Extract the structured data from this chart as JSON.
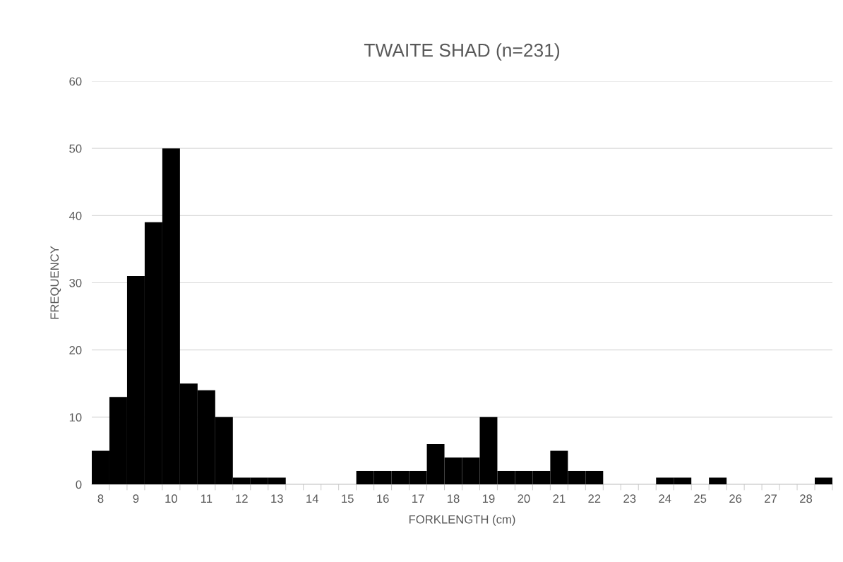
{
  "chart_data": {
    "type": "bar",
    "title": "TWAITE SHAD (n=231)",
    "xlabel": "FORKLENGTH (cm)",
    "ylabel": "FREQUENCY",
    "categories": [
      "8",
      null,
      "9",
      null,
      "10",
      null,
      "11",
      null,
      "12",
      null,
      "13",
      null,
      "14",
      null,
      "15",
      null,
      "16",
      null,
      "17",
      null,
      "18",
      null,
      "19",
      null,
      "20",
      null,
      "21",
      null,
      "22",
      null,
      "23",
      null,
      "24",
      null,
      "25",
      null,
      "26",
      null,
      "27",
      null,
      "28",
      null
    ],
    "values": [
      5,
      13,
      31,
      39,
      50,
      15,
      14,
      10,
      1,
      1,
      1,
      0,
      0,
      0,
      0,
      2,
      2,
      2,
      2,
      6,
      4,
      4,
      10,
      2,
      2,
      2,
      5,
      2,
      2,
      0,
      0,
      0,
      1,
      1,
      0,
      1,
      0,
      0,
      0,
      0,
      0,
      1
    ],
    "color": "#000000",
    "ylim": [
      0,
      60
    ],
    "yticks": [
      0,
      10,
      20,
      30,
      40,
      50,
      60
    ],
    "grid": "y"
  }
}
